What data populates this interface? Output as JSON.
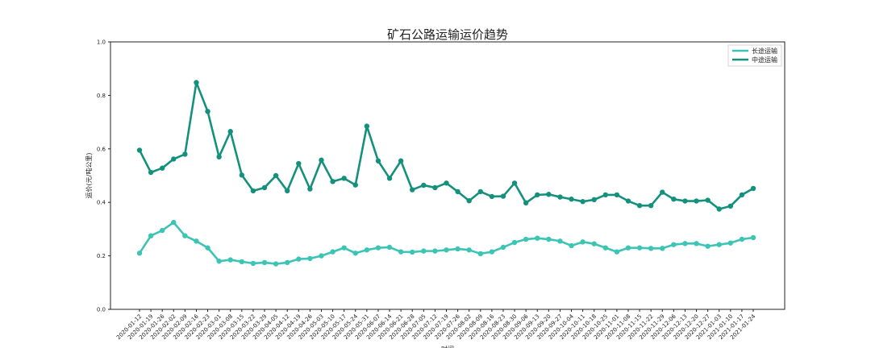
{
  "chart_data": {
    "type": "line",
    "title": "矿石公路运输运价趋势",
    "xlabel": "时间",
    "ylabel": "运价(元/吨公里)",
    "ylim": [
      0.0,
      1.0
    ],
    "yticks": [
      "0.0",
      "0.2",
      "0.4",
      "0.6",
      "0.8",
      "1.0"
    ],
    "grid": false,
    "legend_position": "top-right",
    "categories": [
      "2020-01-12",
      "2020-01-19",
      "2020-01-26",
      "2020-02-02",
      "2020-02-09",
      "2020-02-16",
      "2020-02-23",
      "2020-03-01",
      "2020-03-08",
      "2020-03-15",
      "2020-03-22",
      "2020-03-29",
      "2020-04-05",
      "2020-04-12",
      "2020-04-19",
      "2020-04-26",
      "2020-05-03",
      "2020-05-10",
      "2020-05-17",
      "2020-05-24",
      "2020-05-31",
      "2020-06-07",
      "2020-06-14",
      "2020-06-21",
      "2020-06-28",
      "2020-07-05",
      "2020-07-12",
      "2020-07-19",
      "2020-07-26",
      "2020-08-02",
      "2020-08-09",
      "2020-08-16",
      "2020-08-23",
      "2020-08-30",
      "2020-09-06",
      "2020-09-13",
      "2020-09-20",
      "2020-09-27",
      "2020-10-04",
      "2020-10-11",
      "2020-10-18",
      "2020-10-25",
      "2020-11-01",
      "2020-11-08",
      "2020-11-15",
      "2020-11-22",
      "2020-11-29",
      "2020-12-06",
      "2020-12-13",
      "2020-12-20",
      "2020-12-27",
      "2021-01-03",
      "2021-01-10",
      "2021-01-17",
      "2021-01-24"
    ],
    "series": [
      {
        "name": "长途运输",
        "color": "#3cc4b4",
        "values": [
          0.21,
          0.275,
          0.295,
          0.325,
          0.275,
          0.255,
          0.23,
          0.18,
          0.185,
          0.178,
          0.172,
          0.175,
          0.17,
          0.175,
          0.188,
          0.19,
          0.2,
          0.215,
          0.23,
          0.21,
          0.222,
          0.23,
          0.232,
          0.215,
          0.214,
          0.218,
          0.218,
          0.222,
          0.226,
          0.222,
          0.208,
          0.215,
          0.232,
          0.25,
          0.262,
          0.266,
          0.262,
          0.255,
          0.238,
          0.252,
          0.245,
          0.23,
          0.215,
          0.23,
          0.23,
          0.228,
          0.228,
          0.242,
          0.246,
          0.246,
          0.236,
          0.242,
          0.248,
          0.262,
          0.268
        ]
      },
      {
        "name": "中途运输",
        "color": "#14917d",
        "values": [
          0.595,
          0.512,
          0.528,
          0.562,
          0.58,
          0.848,
          0.74,
          0.57,
          0.665,
          0.502,
          0.443,
          0.455,
          0.5,
          0.443,
          0.545,
          0.45,
          0.558,
          0.478,
          0.49,
          0.465,
          0.685,
          0.555,
          0.49,
          0.555,
          0.447,
          0.464,
          0.455,
          0.472,
          0.44,
          0.406,
          0.44,
          0.422,
          0.423,
          0.472,
          0.398,
          0.428,
          0.43,
          0.42,
          0.412,
          0.403,
          0.41,
          0.428,
          0.428,
          0.405,
          0.388,
          0.388,
          0.438,
          0.412,
          0.405,
          0.405,
          0.408,
          0.375,
          0.386,
          0.428,
          0.452
        ]
      }
    ]
  }
}
